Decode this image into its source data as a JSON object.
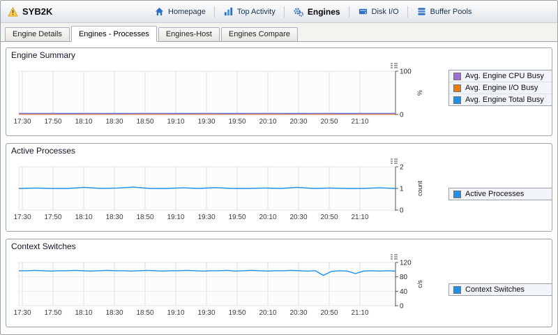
{
  "window": {
    "title": "SYB2K"
  },
  "nav": {
    "items": [
      {
        "label": "Homepage",
        "icon": "homepage-icon"
      },
      {
        "label": "Top Activity",
        "icon": "top-activity-icon"
      },
      {
        "label": "Engines",
        "icon": "engines-icon",
        "active": true
      },
      {
        "label": "Disk I/O",
        "icon": "disk-io-icon"
      },
      {
        "label": "Buffer Pools",
        "icon": "buffer-pools-icon"
      }
    ]
  },
  "tabs": [
    {
      "label": "Engine Details"
    },
    {
      "label": "Engines - Processes",
      "active": true
    },
    {
      "label": "Engines-Host"
    },
    {
      "label": "Engines Compare"
    }
  ],
  "chart_data": [
    {
      "type": "line",
      "title": "Engine Summary",
      "ylabel": "%",
      "ylim": [
        0,
        100
      ],
      "yticks": [
        0,
        100
      ],
      "grid": true,
      "legend_position": "right",
      "x_tick_labels": [
        "17:30",
        "17:50",
        "18:10",
        "18:30",
        "18:50",
        "19:10",
        "19:30",
        "19:50",
        "20:10",
        "20:30",
        "20:50",
        "21:10"
      ],
      "series": [
        {
          "name": "Avg. Engine CPU Busy",
          "color": "#9e6ed6",
          "values": [
            2,
            2,
            2,
            1.5,
            2,
            2,
            1.5,
            2,
            2,
            2,
            1.5,
            2,
            2,
            1.5,
            2,
            2,
            2,
            1.5,
            2,
            2,
            1.5,
            2,
            2,
            2
          ]
        },
        {
          "name": "Avg. Engine I/O Busy",
          "color": "#ee7d00",
          "values": [
            0.5,
            0.5,
            0.5,
            0.5,
            0.5,
            0.5,
            0.5,
            0.5,
            0.5,
            0.5,
            0.5,
            0.5,
            0.5,
            0.5,
            0.5,
            0.5,
            0.5,
            0.5,
            0.5,
            0.5,
            0.5,
            0.5,
            0.5,
            0.5
          ]
        },
        {
          "name": "Avg. Engine Total Busy",
          "color": "#1e8fe8",
          "values": [
            2.5,
            2.5,
            2.5,
            2.5,
            2.5,
            2.5,
            2.5,
            2.5,
            2.5,
            2.5,
            2.5,
            2.5,
            2.5,
            2.5,
            2.5,
            2.5,
            2.5,
            2.5,
            2.5,
            2.5,
            2.5,
            2.5,
            2.5,
            2.5
          ]
        }
      ]
    },
    {
      "type": "line",
      "title": "Active Processes",
      "ylabel": "count",
      "ylim": [
        0,
        2
      ],
      "yticks": [
        0,
        1,
        2
      ],
      "grid": true,
      "legend_position": "right",
      "x_tick_labels": [
        "17:30",
        "17:50",
        "18:10",
        "18:30",
        "18:50",
        "19:10",
        "19:30",
        "19:50",
        "20:10",
        "20:30",
        "20:50",
        "21:10"
      ],
      "series": [
        {
          "name": "Active Processes",
          "color": "#1e8fe8",
          "values": [
            1,
            1.02,
            1,
            1,
            1.05,
            1,
            1.02,
            1.06,
            1,
            1,
            1.03,
            1,
            1.04,
            1,
            1,
            1.02,
            1,
            1.05,
            1,
            1.02,
            1,
            1,
            1.03,
            1
          ]
        }
      ]
    },
    {
      "type": "line",
      "title": "Context Switches",
      "ylabel": "c/s",
      "ylim": [
        0,
        120
      ],
      "yticks": [
        0,
        40,
        80,
        120
      ],
      "grid": true,
      "legend_position": "right",
      "x_tick_labels": [
        "17:30",
        "17:50",
        "18:10",
        "18:30",
        "18:50",
        "19:10",
        "19:30",
        "19:50",
        "20:10",
        "20:30",
        "20:50",
        "21:10"
      ],
      "series": [
        {
          "name": "Context Switches",
          "color": "#1e8fe8",
          "values": [
            97,
            97,
            98,
            97,
            96,
            97,
            97,
            98,
            97,
            96,
            97,
            98,
            97,
            97,
            96,
            97,
            98,
            97,
            96,
            97,
            97,
            98,
            97,
            96,
            97,
            97,
            98,
            96,
            97,
            98,
            97,
            96,
            97,
            97,
            98,
            97,
            96,
            97,
            84,
            95,
            97,
            96,
            89,
            96,
            97,
            96,
            97,
            96
          ]
        }
      ]
    }
  ]
}
